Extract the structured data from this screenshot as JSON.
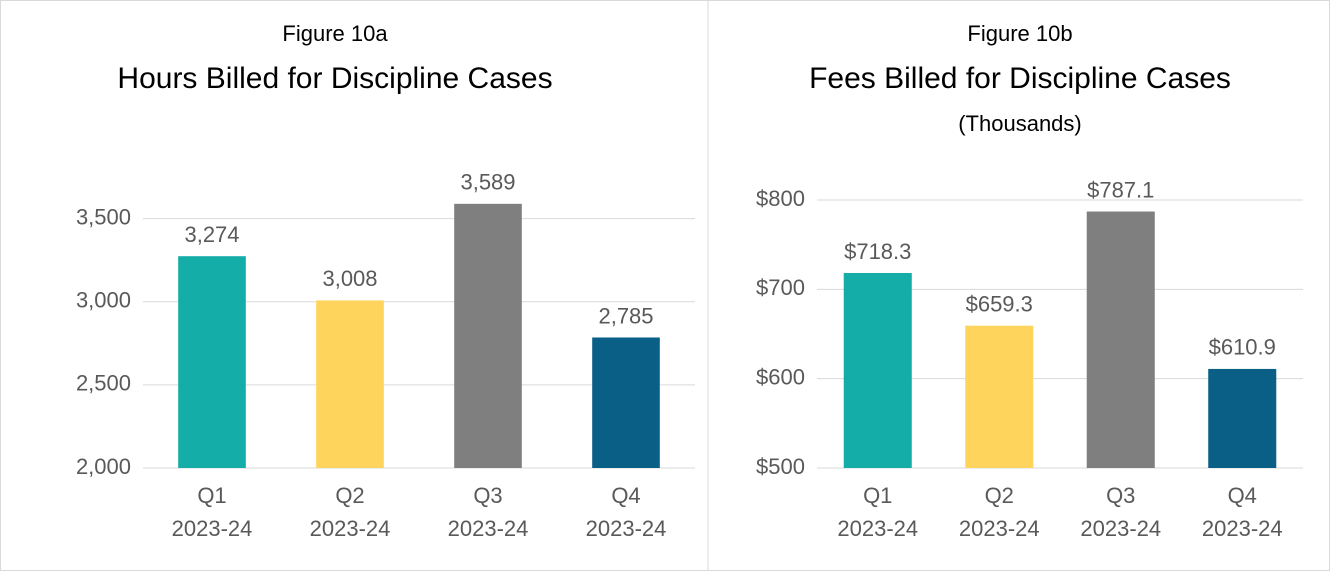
{
  "chart_data": [
    {
      "type": "bar",
      "title": "Figure 10a",
      "subtitle": "Hours Billed for Discipline Cases",
      "categories": [
        [
          "Q1",
          "2023-24"
        ],
        [
          "Q2",
          "2023-24"
        ],
        [
          "Q3",
          "2023-24"
        ],
        [
          "Q4",
          "2023-24"
        ]
      ],
      "values": [
        3274,
        3008,
        3589,
        2785
      ],
      "value_labels": [
        "3,274",
        "3,008",
        "3,589",
        "2,785"
      ],
      "colors": [
        "#14ada8",
        "#ffd45c",
        "#7f7f7f",
        "#0a5f87"
      ],
      "ylim": [
        2000,
        3600
      ],
      "yticks": [
        {
          "value": 2000,
          "label": "2,000"
        },
        {
          "value": 2500,
          "label": "2,500"
        },
        {
          "value": 3000,
          "label": "3,000"
        },
        {
          "value": 3500,
          "label": "3,500"
        }
      ],
      "grid": true
    },
    {
      "type": "bar",
      "title": "Figure 10b",
      "subtitle": "Fees Billed for Discipline Cases",
      "note": "(Thousands)",
      "categories": [
        [
          "Q1",
          "2023-24"
        ],
        [
          "Q2",
          "2023-24"
        ],
        [
          "Q3",
          "2023-24"
        ],
        [
          "Q4",
          "2023-24"
        ]
      ],
      "values": [
        718.3,
        659.3,
        787.1,
        610.9
      ],
      "value_labels": [
        "$718.3",
        "$659.3",
        "$787.1",
        "$610.9"
      ],
      "colors": [
        "#14ada8",
        "#ffd45c",
        "#7f7f7f",
        "#0a5f87"
      ],
      "ylim": [
        500,
        800
      ],
      "yticks": [
        {
          "value": 500,
          "label": "$500"
        },
        {
          "value": 600,
          "label": "$600"
        },
        {
          "value": 700,
          "label": "$700"
        },
        {
          "value": 800,
          "label": "$800"
        }
      ],
      "grid": true
    }
  ]
}
